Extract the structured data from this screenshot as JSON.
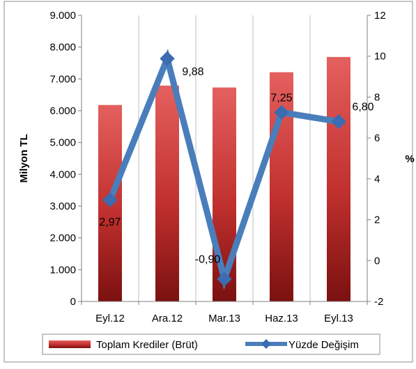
{
  "colors": {
    "title_blue": "#1f4e9c",
    "bar_top": "#e4605e",
    "bar_mid": "#c0302e",
    "bar_dark": "#7a1110",
    "line": "#4a7ebb",
    "marker": "#3b6bb0",
    "axis": "#7f7f7f",
    "grid": "#bfbfbf",
    "frame": "#8c8c8c"
  },
  "chart_data": {
    "type": "bar",
    "title": "",
    "categories": [
      "Eyl.12",
      "Ara.12",
      "Mar.13",
      "Haz.13",
      "Eyl.13"
    ],
    "series": [
      {
        "name": "Toplam Krediler (Brüt)",
        "type": "bar",
        "axis": "left",
        "values": [
          6180,
          6790,
          6730,
          7210,
          7690
        ]
      },
      {
        "name": "Yüzde Değişim",
        "type": "line",
        "axis": "right",
        "values": [
          2.97,
          9.88,
          -0.9,
          7.25,
          6.8
        ],
        "labels": [
          "2,97",
          "9,88",
          "-0,90",
          "7,25",
          "6,80"
        ]
      }
    ],
    "ylabel": "Milyon TL",
    "y2label": "%",
    "ylim": [
      0,
      9000
    ],
    "y2lim": [
      -2,
      12
    ],
    "yticks": [
      "0",
      "1.000",
      "2.000",
      "3.000",
      "4.000",
      "5.000",
      "6.000",
      "7.000",
      "8.000",
      "9.000"
    ],
    "y2ticks": [
      "-2",
      "0",
      "2",
      "4",
      "6",
      "8",
      "10",
      "12"
    ],
    "grid": true,
    "legend_position": "bottom"
  }
}
